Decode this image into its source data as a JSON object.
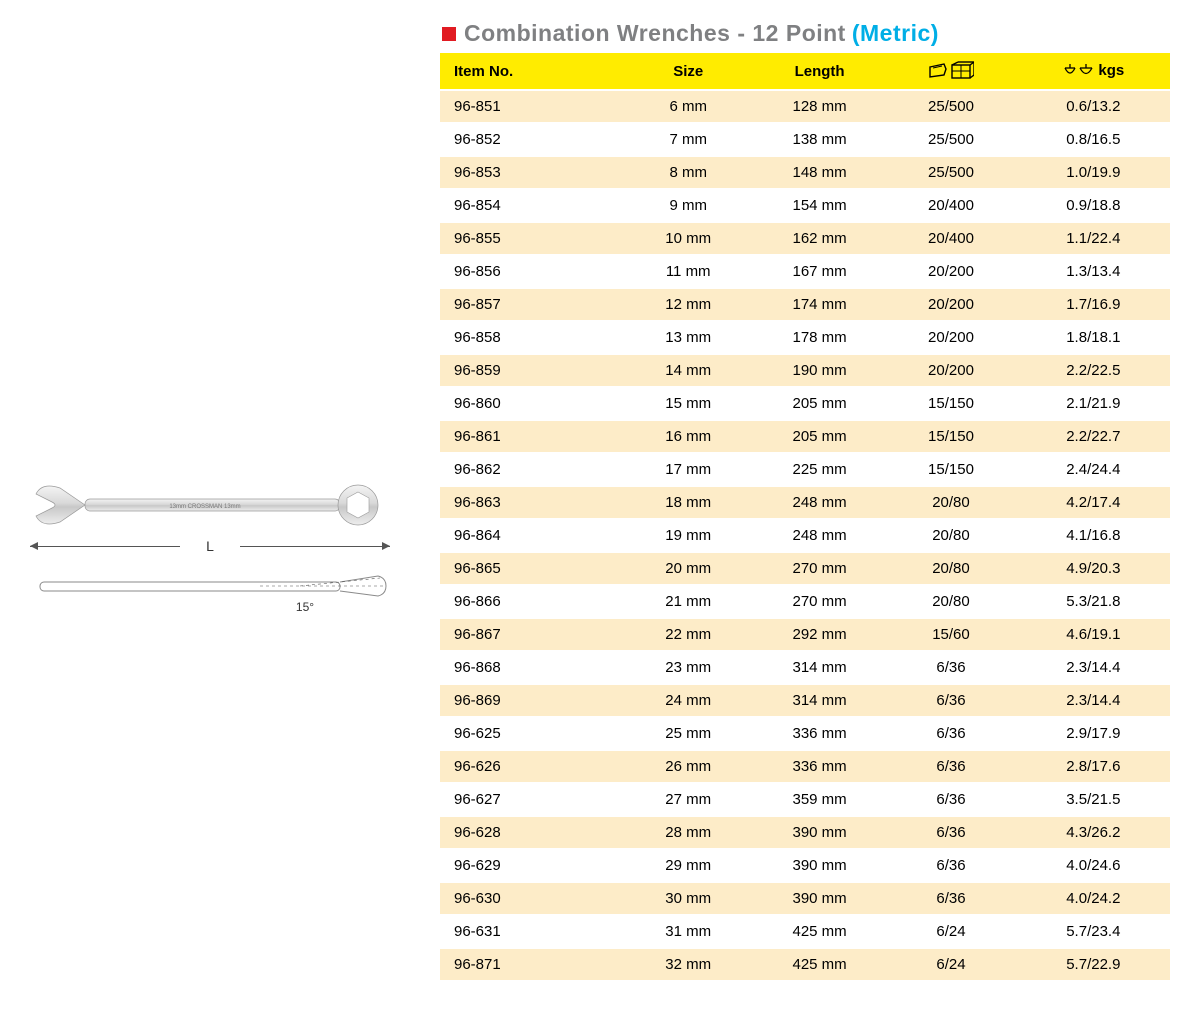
{
  "title": {
    "main": "Combination Wrenches - 12 Point",
    "metric": "(Metric)"
  },
  "illustration": {
    "length_symbol": "L",
    "angle_label": "15°",
    "tool_text": "13mm  CROSSMAN  13mm"
  },
  "table": {
    "header_bg": "#ffec00",
    "row_odd_bg": "#fdecc8",
    "row_even_bg": "#ffffff",
    "columns": {
      "item": "Item No.",
      "size": "Size",
      "length": "Length",
      "weight_suffix": "kgs"
    },
    "rows": [
      {
        "item": "96-851",
        "size": "6 mm",
        "length": "128 mm",
        "pack": "25/500",
        "weight": "0.6/13.2"
      },
      {
        "item": "96-852",
        "size": "7 mm",
        "length": "138 mm",
        "pack": "25/500",
        "weight": "0.8/16.5"
      },
      {
        "item": "96-853",
        "size": "8 mm",
        "length": "148 mm",
        "pack": "25/500",
        "weight": "1.0/19.9"
      },
      {
        "item": "96-854",
        "size": "9 mm",
        "length": "154 mm",
        "pack": "20/400",
        "weight": "0.9/18.8"
      },
      {
        "item": "96-855",
        "size": "10 mm",
        "length": "162 mm",
        "pack": "20/400",
        "weight": "1.1/22.4"
      },
      {
        "item": "96-856",
        "size": "11 mm",
        "length": "167 mm",
        "pack": "20/200",
        "weight": "1.3/13.4"
      },
      {
        "item": "96-857",
        "size": "12 mm",
        "length": "174 mm",
        "pack": "20/200",
        "weight": "1.7/16.9"
      },
      {
        "item": "96-858",
        "size": "13 mm",
        "length": "178 mm",
        "pack": "20/200",
        "weight": "1.8/18.1"
      },
      {
        "item": "96-859",
        "size": "14 mm",
        "length": "190 mm",
        "pack": "20/200",
        "weight": "2.2/22.5"
      },
      {
        "item": "96-860",
        "size": "15 mm",
        "length": "205 mm",
        "pack": "15/150",
        "weight": "2.1/21.9"
      },
      {
        "item": "96-861",
        "size": "16 mm",
        "length": "205 mm",
        "pack": "15/150",
        "weight": "2.2/22.7"
      },
      {
        "item": "96-862",
        "size": "17 mm",
        "length": "225 mm",
        "pack": "15/150",
        "weight": "2.4/24.4"
      },
      {
        "item": "96-863",
        "size": "18 mm",
        "length": "248 mm",
        "pack": "20/80",
        "weight": "4.2/17.4"
      },
      {
        "item": "96-864",
        "size": "19 mm",
        "length": "248 mm",
        "pack": "20/80",
        "weight": "4.1/16.8"
      },
      {
        "item": "96-865",
        "size": "20 mm",
        "length": "270 mm",
        "pack": "20/80",
        "weight": "4.9/20.3"
      },
      {
        "item": "96-866",
        "size": "21 mm",
        "length": "270 mm",
        "pack": "20/80",
        "weight": "5.3/21.8"
      },
      {
        "item": "96-867",
        "size": "22 mm",
        "length": "292 mm",
        "pack": "15/60",
        "weight": "4.6/19.1"
      },
      {
        "item": "96-868",
        "size": "23 mm",
        "length": "314 mm",
        "pack": "6/36",
        "weight": "2.3/14.4"
      },
      {
        "item": "96-869",
        "size": "24 mm",
        "length": "314 mm",
        "pack": "6/36",
        "weight": "2.3/14.4"
      },
      {
        "item": "96-625",
        "size": "25 mm",
        "length": "336 mm",
        "pack": "6/36",
        "weight": "2.9/17.9"
      },
      {
        "item": "96-626",
        "size": "26 mm",
        "length": "336 mm",
        "pack": "6/36",
        "weight": "2.8/17.6"
      },
      {
        "item": "96-627",
        "size": "27 mm",
        "length": "359 mm",
        "pack": "6/36",
        "weight": "3.5/21.5"
      },
      {
        "item": "96-628",
        "size": "28 mm",
        "length": "390 mm",
        "pack": "6/36",
        "weight": "4.3/26.2"
      },
      {
        "item": "96-629",
        "size": "29 mm",
        "length": "390 mm",
        "pack": "6/36",
        "weight": "4.0/24.6"
      },
      {
        "item": "96-630",
        "size": "30 mm",
        "length": "390 mm",
        "pack": "6/36",
        "weight": "4.0/24.2"
      },
      {
        "item": "96-631",
        "size": "31 mm",
        "length": "425 mm",
        "pack": "6/24",
        "weight": "5.7/23.4"
      },
      {
        "item": "96-871",
        "size": "32 mm",
        "length": "425 mm",
        "pack": "6/24",
        "weight": "5.7/22.9"
      }
    ]
  }
}
